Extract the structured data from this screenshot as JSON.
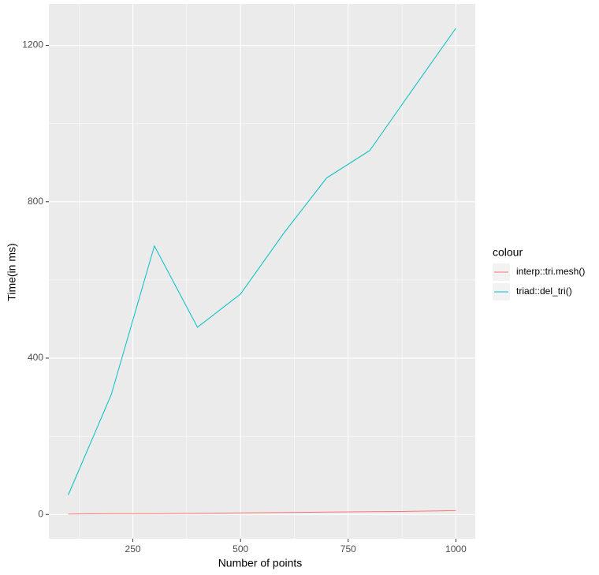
{
  "chart_data": {
    "type": "line",
    "x_label": "Number of points",
    "y_label": "Time(in ms)",
    "x": [
      100,
      200,
      300,
      400,
      500,
      600,
      700,
      800,
      900,
      1000
    ],
    "series": [
      {
        "name": "interp::tri.mesh()",
        "color": "#F8766D",
        "values": [
          1,
          2,
          2,
          3,
          4,
          5,
          6,
          7,
          8,
          10
        ]
      },
      {
        "name": "triad::del_tri()",
        "color": "#00BFC4",
        "values": [
          50,
          307,
          687,
          479,
          564,
          719,
          861,
          931,
          1088,
          1244
        ]
      }
    ],
    "xlim": [
      55,
      1045
    ],
    "xticks": [
      250,
      500,
      750,
      1000
    ],
    "x_minor_breaks": [
      125,
      375,
      625,
      875
    ],
    "ylim": [
      -62,
      1306
    ],
    "yticks": [
      0,
      400,
      800,
      1200
    ],
    "y_minor_breaks": [
      200,
      600,
      1000
    ],
    "grid": true,
    "legend_title": "colour",
    "legend_position": "right"
  }
}
